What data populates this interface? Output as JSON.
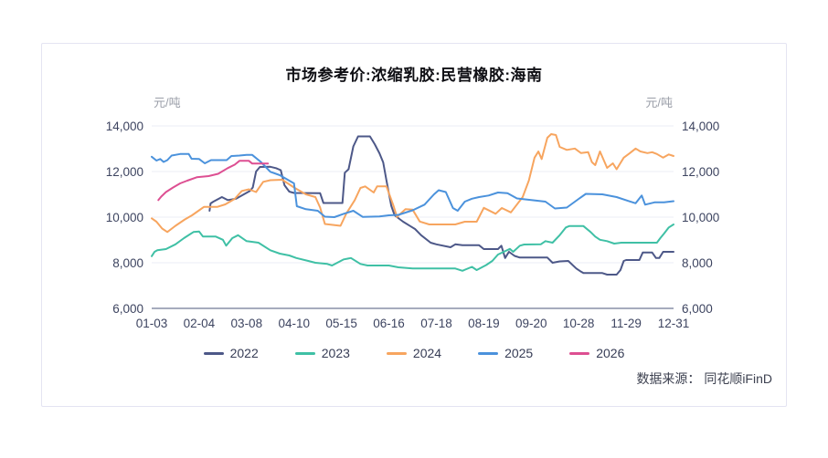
{
  "page": {
    "source_label": "数据来源： 同花顺iFinD"
  },
  "chart_data": {
    "type": "line",
    "title": "市场参考价:浓缩乳胶:民营橡胶:海南",
    "unit_left": "元/吨",
    "unit_right": "元/吨",
    "xlabel": "",
    "ylabel": "元/吨",
    "ylim": [
      6000,
      14000
    ],
    "yticks": [
      6000,
      8000,
      10000,
      12000,
      14000
    ],
    "ytick_labels": [
      "6,000",
      "8,000",
      "10,000",
      "12,000",
      "14,000"
    ],
    "grid": true,
    "legend_position": "bottom",
    "categories": [
      "01-03",
      "02-04",
      "03-08",
      "04-10",
      "05-15",
      "06-16",
      "07-18",
      "08-19",
      "09-20",
      "10-28",
      "11-29",
      "12-31"
    ],
    "series": [
      {
        "name": "2022",
        "color": "#4d5888",
        "points": [
          [
            1.22,
            10280
          ],
          [
            1.24,
            10600
          ],
          [
            1.3,
            10680
          ],
          [
            1.48,
            10880
          ],
          [
            1.6,
            10750
          ],
          [
            1.78,
            10810
          ],
          [
            2.07,
            11150
          ],
          [
            2.13,
            11300
          ],
          [
            2.2,
            12000
          ],
          [
            2.28,
            12200
          ],
          [
            2.5,
            12210
          ],
          [
            2.62,
            12150
          ],
          [
            2.72,
            12060
          ],
          [
            2.8,
            11400
          ],
          [
            2.9,
            11120
          ],
          [
            3.0,
            11060
          ],
          [
            3.55,
            11050
          ],
          [
            3.62,
            10620
          ],
          [
            4.02,
            10620
          ],
          [
            4.07,
            11950
          ],
          [
            4.15,
            12100
          ],
          [
            4.25,
            13100
          ],
          [
            4.35,
            13540
          ],
          [
            4.6,
            13540
          ],
          [
            4.7,
            13200
          ],
          [
            4.8,
            12800
          ],
          [
            4.88,
            12400
          ],
          [
            4.95,
            11600
          ],
          [
            5.05,
            10500
          ],
          [
            5.12,
            10080
          ],
          [
            5.3,
            9800
          ],
          [
            5.45,
            9610
          ],
          [
            5.55,
            9480
          ],
          [
            5.68,
            9210
          ],
          [
            5.88,
            8880
          ],
          [
            6.0,
            8810
          ],
          [
            6.3,
            8680
          ],
          [
            6.4,
            8810
          ],
          [
            6.55,
            8770
          ],
          [
            6.9,
            8770
          ],
          [
            7.0,
            8600
          ],
          [
            7.3,
            8600
          ],
          [
            7.37,
            8750
          ],
          [
            7.45,
            8210
          ],
          [
            7.53,
            8480
          ],
          [
            7.65,
            8300
          ],
          [
            7.76,
            8230
          ],
          [
            8.34,
            8230
          ],
          [
            8.45,
            8000
          ],
          [
            8.6,
            8060
          ],
          [
            8.78,
            8080
          ],
          [
            8.95,
            7750
          ],
          [
            9.05,
            7610
          ],
          [
            9.1,
            7550
          ],
          [
            9.5,
            7550
          ],
          [
            9.6,
            7480
          ],
          [
            9.8,
            7480
          ],
          [
            9.88,
            7680
          ],
          [
            9.95,
            8080
          ],
          [
            10.0,
            8120
          ],
          [
            10.28,
            8120
          ],
          [
            10.35,
            8450
          ],
          [
            10.55,
            8450
          ],
          [
            10.63,
            8210
          ],
          [
            10.7,
            8210
          ],
          [
            10.78,
            8480
          ],
          [
            11.0,
            8480
          ]
        ]
      },
      {
        "name": "2023",
        "color": "#3fc0a5",
        "points": [
          [
            0.0,
            8290
          ],
          [
            0.06,
            8480
          ],
          [
            0.12,
            8550
          ],
          [
            0.3,
            8600
          ],
          [
            0.5,
            8810
          ],
          [
            0.68,
            9080
          ],
          [
            0.88,
            9350
          ],
          [
            1.0,
            9370
          ],
          [
            1.08,
            9150
          ],
          [
            1.35,
            9150
          ],
          [
            1.5,
            9010
          ],
          [
            1.57,
            8750
          ],
          [
            1.7,
            9080
          ],
          [
            1.82,
            9210
          ],
          [
            2.0,
            8950
          ],
          [
            2.25,
            8880
          ],
          [
            2.5,
            8550
          ],
          [
            2.7,
            8400
          ],
          [
            2.9,
            8320
          ],
          [
            3.05,
            8210
          ],
          [
            3.3,
            8080
          ],
          [
            3.45,
            8000
          ],
          [
            3.7,
            7950
          ],
          [
            3.8,
            7880
          ],
          [
            4.05,
            8150
          ],
          [
            4.2,
            8210
          ],
          [
            4.4,
            7950
          ],
          [
            4.55,
            7880
          ],
          [
            5.0,
            7880
          ],
          [
            5.2,
            7800
          ],
          [
            5.5,
            7750
          ],
          [
            6.4,
            7750
          ],
          [
            6.55,
            7650
          ],
          [
            6.75,
            7820
          ],
          [
            6.85,
            7680
          ],
          [
            7.05,
            7900
          ],
          [
            7.18,
            8080
          ],
          [
            7.3,
            8360
          ],
          [
            7.42,
            8480
          ],
          [
            7.55,
            8610
          ],
          [
            7.62,
            8480
          ],
          [
            7.76,
            8750
          ],
          [
            7.85,
            8800
          ],
          [
            8.2,
            8810
          ],
          [
            8.3,
            8950
          ],
          [
            8.45,
            8880
          ],
          [
            8.6,
            9210
          ],
          [
            8.73,
            9550
          ],
          [
            8.8,
            9610
          ],
          [
            9.1,
            9610
          ],
          [
            9.25,
            9350
          ],
          [
            9.35,
            9150
          ],
          [
            9.45,
            9010
          ],
          [
            9.6,
            8950
          ],
          [
            9.75,
            8840
          ],
          [
            9.9,
            8880
          ],
          [
            10.65,
            8880
          ],
          [
            10.72,
            9080
          ],
          [
            10.8,
            9280
          ],
          [
            10.9,
            9550
          ],
          [
            11.0,
            9680
          ]
        ]
      },
      {
        "name": "2024",
        "color": "#f7a55f",
        "points": [
          [
            0.0,
            9950
          ],
          [
            0.1,
            9800
          ],
          [
            0.22,
            9500
          ],
          [
            0.33,
            9350
          ],
          [
            0.5,
            9620
          ],
          [
            0.7,
            9900
          ],
          [
            0.85,
            10080
          ],
          [
            1.0,
            10300
          ],
          [
            1.1,
            10450
          ],
          [
            1.38,
            10450
          ],
          [
            1.55,
            10560
          ],
          [
            1.75,
            10800
          ],
          [
            1.9,
            11150
          ],
          [
            2.05,
            11220
          ],
          [
            2.2,
            11100
          ],
          [
            2.35,
            11550
          ],
          [
            2.5,
            11620
          ],
          [
            2.75,
            11640
          ],
          [
            3.0,
            11300
          ],
          [
            3.25,
            11000
          ],
          [
            3.45,
            10880
          ],
          [
            3.55,
            10420
          ],
          [
            3.65,
            9700
          ],
          [
            3.98,
            9620
          ],
          [
            4.1,
            10150
          ],
          [
            4.28,
            10750
          ],
          [
            4.4,
            11280
          ],
          [
            4.5,
            11350
          ],
          [
            4.68,
            11080
          ],
          [
            4.75,
            11350
          ],
          [
            4.95,
            11350
          ],
          [
            5.1,
            10480
          ],
          [
            5.17,
            10010
          ],
          [
            5.35,
            10350
          ],
          [
            5.5,
            10330
          ],
          [
            5.65,
            9810
          ],
          [
            5.85,
            9680
          ],
          [
            6.4,
            9680
          ],
          [
            6.6,
            9800
          ],
          [
            6.85,
            9800
          ],
          [
            7.0,
            10410
          ],
          [
            7.25,
            10150
          ],
          [
            7.38,
            10400
          ],
          [
            7.57,
            10210
          ],
          [
            7.82,
            10880
          ],
          [
            7.95,
            11610
          ],
          [
            8.07,
            12610
          ],
          [
            8.15,
            12880
          ],
          [
            8.22,
            12550
          ],
          [
            8.34,
            13480
          ],
          [
            8.42,
            13640
          ],
          [
            8.52,
            13600
          ],
          [
            8.6,
            13080
          ],
          [
            8.75,
            12950
          ],
          [
            8.92,
            13010
          ],
          [
            9.05,
            12810
          ],
          [
            9.2,
            12850
          ],
          [
            9.28,
            12410
          ],
          [
            9.35,
            12280
          ],
          [
            9.45,
            12880
          ],
          [
            9.6,
            12160
          ],
          [
            9.72,
            12360
          ],
          [
            9.8,
            12100
          ],
          [
            9.95,
            12610
          ],
          [
            10.08,
            12810
          ],
          [
            10.2,
            13010
          ],
          [
            10.3,
            12880
          ],
          [
            10.45,
            12810
          ],
          [
            10.55,
            12850
          ],
          [
            10.65,
            12770
          ],
          [
            10.78,
            12610
          ],
          [
            10.9,
            12750
          ],
          [
            11.0,
            12680
          ]
        ]
      },
      {
        "name": "2025",
        "color": "#4b92dc",
        "points": [
          [
            0.0,
            12650
          ],
          [
            0.1,
            12480
          ],
          [
            0.18,
            12550
          ],
          [
            0.25,
            12420
          ],
          [
            0.33,
            12500
          ],
          [
            0.42,
            12700
          ],
          [
            0.6,
            12770
          ],
          [
            0.78,
            12770
          ],
          [
            0.84,
            12560
          ],
          [
            1.0,
            12550
          ],
          [
            1.12,
            12360
          ],
          [
            1.25,
            12500
          ],
          [
            1.58,
            12500
          ],
          [
            1.68,
            12680
          ],
          [
            1.85,
            12700
          ],
          [
            2.0,
            12730
          ],
          [
            2.12,
            12730
          ],
          [
            2.3,
            12420
          ],
          [
            2.5,
            11990
          ],
          [
            2.7,
            11840
          ],
          [
            2.9,
            11600
          ],
          [
            3.0,
            11480
          ],
          [
            3.06,
            10480
          ],
          [
            3.25,
            10350
          ],
          [
            3.5,
            10280
          ],
          [
            3.65,
            10020
          ],
          [
            3.85,
            10000
          ],
          [
            4.05,
            10150
          ],
          [
            4.25,
            10280
          ],
          [
            4.45,
            10010
          ],
          [
            4.8,
            10030
          ],
          [
            5.0,
            10080
          ],
          [
            5.2,
            10100
          ],
          [
            5.5,
            10300
          ],
          [
            5.75,
            10550
          ],
          [
            5.95,
            11000
          ],
          [
            6.05,
            11180
          ],
          [
            6.2,
            11100
          ],
          [
            6.35,
            10400
          ],
          [
            6.45,
            10280
          ],
          [
            6.6,
            10680
          ],
          [
            6.75,
            10810
          ],
          [
            6.9,
            10880
          ],
          [
            7.1,
            10950
          ],
          [
            7.3,
            11080
          ],
          [
            7.5,
            11050
          ],
          [
            7.7,
            10820
          ],
          [
            8.0,
            10750
          ],
          [
            8.3,
            10680
          ],
          [
            8.5,
            10380
          ],
          [
            8.75,
            10420
          ],
          [
            9.0,
            10800
          ],
          [
            9.15,
            11020
          ],
          [
            9.5,
            11000
          ],
          [
            9.8,
            10880
          ],
          [
            10.05,
            10710
          ],
          [
            10.2,
            10610
          ],
          [
            10.33,
            10950
          ],
          [
            10.4,
            10550
          ],
          [
            10.6,
            10650
          ],
          [
            10.8,
            10650
          ],
          [
            11.0,
            10700
          ]
        ]
      },
      {
        "name": "2026",
        "color": "#dd4f92",
        "points": [
          [
            0.14,
            10750
          ],
          [
            0.2,
            10900
          ],
          [
            0.3,
            11100
          ],
          [
            0.45,
            11300
          ],
          [
            0.6,
            11480
          ],
          [
            0.75,
            11600
          ],
          [
            0.95,
            11750
          ],
          [
            1.2,
            11800
          ],
          [
            1.4,
            11900
          ],
          [
            1.6,
            12150
          ],
          [
            1.75,
            12300
          ],
          [
            1.85,
            12470
          ],
          [
            2.05,
            12470
          ],
          [
            2.12,
            12350
          ],
          [
            2.45,
            12350
          ]
        ]
      }
    ]
  }
}
